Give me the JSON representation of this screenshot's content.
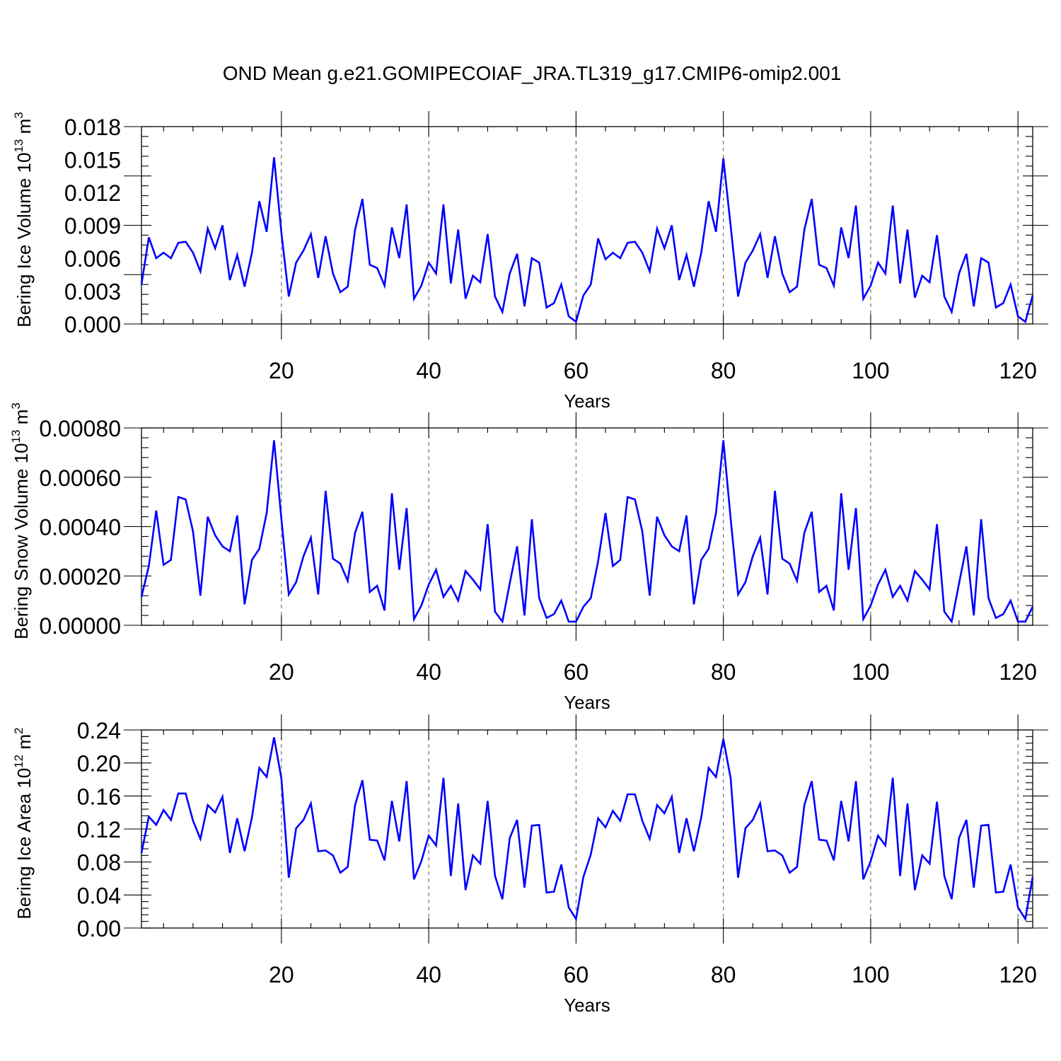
{
  "title": "OND Mean g.e21.GOMIPECOIAF_JRA.TL319_g17.CMIP6-omip2.001",
  "chart_data": [
    {
      "type": "line",
      "name": "panel-ice-volume",
      "ylabel": "Bering Ice Volume 10",
      "ylabel_sup": "13",
      "ylabel_unit": " m",
      "ylabel_unit_sup": "3",
      "xlabel": "Years",
      "xlim": [
        1,
        122
      ],
      "ylim": [
        0,
        0.018
      ],
      "xticks": [
        20,
        40,
        60,
        80,
        100,
        120
      ],
      "xtick_labels": [
        "20",
        "40",
        "60",
        "80",
        "100",
        "120"
      ],
      "yticks": [
        0,
        0.003,
        0.006,
        0.009,
        0.012,
        0.015,
        0.018
      ],
      "ytick_labels": [
        "0.000",
        "0.003",
        "0.006",
        "0.009",
        "0.012",
        "0.015",
        "0.018"
      ],
      "yminor": 0.0009,
      "color": "#0000ff",
      "x_start": 1,
      "values": [
        0.0036,
        0.0079,
        0.006,
        0.0065,
        0.006,
        0.0074,
        0.0075,
        0.0065,
        0.0048,
        0.0087,
        0.0069,
        0.009,
        0.004,
        0.0063,
        0.0034,
        0.0065,
        0.0112,
        0.0084,
        0.0152,
        0.0083,
        0.0025,
        0.0056,
        0.0067,
        0.0082,
        0.0042,
        0.008,
        0.0046,
        0.0029,
        0.0034,
        0.0086,
        0.0114,
        0.0054,
        0.0051,
        0.0035,
        0.0088,
        0.006,
        0.0109,
        0.0023,
        0.0035,
        0.0056,
        0.0046,
        0.0109,
        0.0037,
        0.0086,
        0.0023,
        0.0044,
        0.0038,
        0.0082,
        0.0025,
        0.0011,
        0.0046,
        0.0064,
        0.0016,
        0.006,
        0.0056,
        0.0015,
        0.0019,
        0.0036,
        0.0007,
        0.0002,
        0.0026,
        0.0036,
        0.0078,
        0.0059,
        0.0065,
        0.006,
        0.0074,
        0.0075,
        0.0065,
        0.0048,
        0.0087,
        0.0069,
        0.009,
        0.004,
        0.0063,
        0.0034,
        0.0065,
        0.0112,
        0.0084,
        0.0151,
        0.0089,
        0.0025,
        0.0056,
        0.0067,
        0.0082,
        0.0042,
        0.008,
        0.0046,
        0.0029,
        0.0034,
        0.0086,
        0.0114,
        0.0054,
        0.0051,
        0.0035,
        0.0088,
        0.006,
        0.0108,
        0.0023,
        0.0035,
        0.0056,
        0.0046,
        0.0108,
        0.0037,
        0.0086,
        0.0024,
        0.0044,
        0.0038,
        0.0081,
        0.0025,
        0.0011,
        0.0046,
        0.0064,
        0.0016,
        0.006,
        0.0056,
        0.0015,
        0.0019,
        0.0036,
        0.0007,
        0.0002,
        0.0026
      ]
    },
    {
      "type": "line",
      "name": "panel-snow-volume",
      "ylabel": "Bering Snow Volume 10",
      "ylabel_sup": "13",
      "ylabel_unit": " m",
      "ylabel_unit_sup": "3",
      "xlabel": "Years",
      "xlim": [
        1,
        122
      ],
      "ylim": [
        0,
        0.0008
      ],
      "xticks": [
        20,
        40,
        60,
        80,
        100,
        120
      ],
      "xtick_labels": [
        "20",
        "40",
        "60",
        "80",
        "100",
        "120"
      ],
      "yticks": [
        0,
        0.0002,
        0.0004,
        0.0006,
        0.0008
      ],
      "ytick_labels": [
        "0.00000",
        "0.00020",
        "0.00040",
        "0.00060",
        "0.00080"
      ],
      "yminor": 4e-05,
      "color": "#0000ff",
      "x_start": 1,
      "values": [
        0.000115,
        0.00024,
        0.000465,
        0.000245,
        0.000265,
        0.00052,
        0.00051,
        0.00038,
        0.00012,
        0.00044,
        0.000365,
        0.00032,
        0.0003,
        0.000445,
        8.5e-05,
        0.000265,
        0.00031,
        0.000455,
        0.00075,
        0.00043,
        0.000125,
        0.000175,
        0.00028,
        0.000355,
        0.000125,
        0.000545,
        0.00027,
        0.00025,
        0.00018,
        0.000375,
        0.00046,
        0.000135,
        0.00016,
        6e-05,
        0.000535,
        0.000225,
        0.000475,
        2.5e-05,
        8e-05,
        0.000165,
        0.000225,
        0.000115,
        0.00016,
        0.0001,
        0.00022,
        0.000185,
        0.000145,
        0.00041,
        5.5e-05,
        1.5e-05,
        0.00017,
        0.00032,
        4e-05,
        0.00043,
        0.00011,
        3e-05,
        4.5e-05,
        0.0001,
        1.5e-05,
        1.5e-05,
        7.5e-05,
        0.00011,
        0.00026,
        0.000455,
        0.00024,
        0.000265,
        0.00052,
        0.00051,
        0.00038,
        0.00012,
        0.00044,
        0.000365,
        0.00032,
        0.0003,
        0.000445,
        8.5e-05,
        0.000265,
        0.00031,
        0.000455,
        0.00075,
        0.00043,
        0.000125,
        0.000175,
        0.00028,
        0.000355,
        0.000125,
        0.000545,
        0.00027,
        0.00025,
        0.00018,
        0.000375,
        0.00046,
        0.000135,
        0.00016,
        6e-05,
        0.000535,
        0.000225,
        0.000475,
        2.5e-05,
        8e-05,
        0.000165,
        0.000225,
        0.000115,
        0.00016,
        0.0001,
        0.00022,
        0.000185,
        0.000145,
        0.00041,
        5.5e-05,
        1.5e-05,
        0.00017,
        0.00032,
        4e-05,
        0.00043,
        0.00011,
        3e-05,
        4.5e-05,
        0.0001,
        1.5e-05,
        1.5e-05,
        7.5e-05
      ]
    },
    {
      "type": "line",
      "name": "panel-ice-area",
      "ylabel": "Bering Ice Area 10",
      "ylabel_sup": "12",
      "ylabel_unit": " m",
      "ylabel_unit_sup": "2",
      "xlabel": "Years",
      "xlim": [
        1,
        122
      ],
      "ylim": [
        0,
        0.24
      ],
      "xticks": [
        20,
        40,
        60,
        80,
        100,
        120
      ],
      "xtick_labels": [
        "20",
        "40",
        "60",
        "80",
        "100",
        "120"
      ],
      "yticks": [
        0,
        0.04,
        0.08,
        0.12,
        0.16,
        0.2,
        0.24
      ],
      "ytick_labels": [
        "0.00",
        "0.04",
        "0.08",
        "0.12",
        "0.16",
        "0.20",
        "0.24"
      ],
      "yminor": 0.008,
      "color": "#0000ff",
      "x_start": 1,
      "values": [
        0.091,
        0.135,
        0.125,
        0.143,
        0.131,
        0.163,
        0.163,
        0.13,
        0.108,
        0.149,
        0.14,
        0.159,
        0.091,
        0.133,
        0.093,
        0.134,
        0.194,
        0.183,
        0.231,
        0.181,
        0.061,
        0.121,
        0.131,
        0.151,
        0.093,
        0.094,
        0.088,
        0.067,
        0.074,
        0.149,
        0.179,
        0.107,
        0.106,
        0.082,
        0.154,
        0.105,
        0.178,
        0.059,
        0.081,
        0.112,
        0.1,
        0.182,
        0.063,
        0.151,
        0.046,
        0.088,
        0.078,
        0.154,
        0.063,
        0.035,
        0.109,
        0.131,
        0.049,
        0.124,
        0.125,
        0.043,
        0.044,
        0.077,
        0.025,
        0.011,
        0.062,
        0.089,
        0.133,
        0.122,
        0.142,
        0.13,
        0.162,
        0.162,
        0.13,
        0.108,
        0.149,
        0.139,
        0.159,
        0.091,
        0.133,
        0.093,
        0.134,
        0.194,
        0.183,
        0.229,
        0.181,
        0.061,
        0.121,
        0.131,
        0.151,
        0.093,
        0.094,
        0.088,
        0.067,
        0.074,
        0.149,
        0.178,
        0.107,
        0.106,
        0.082,
        0.154,
        0.105,
        0.178,
        0.059,
        0.081,
        0.112,
        0.1,
        0.182,
        0.063,
        0.151,
        0.046,
        0.088,
        0.078,
        0.153,
        0.063,
        0.035,
        0.109,
        0.131,
        0.049,
        0.124,
        0.125,
        0.043,
        0.044,
        0.077,
        0.025,
        0.011,
        0.062
      ]
    }
  ]
}
